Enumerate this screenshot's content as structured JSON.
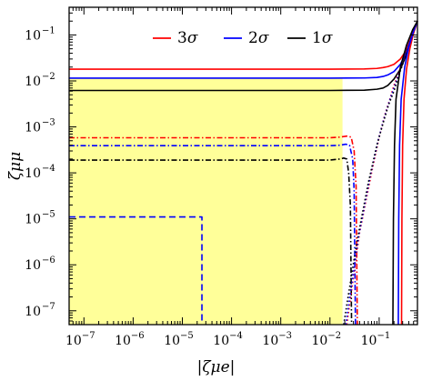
{
  "chart_data": {
    "type": "line",
    "xscale": "log",
    "yscale": "log",
    "xlim": [
      5e-08,
      0.6
    ],
    "ylim": [
      5e-08,
      0.4
    ],
    "xlabel": "|ζμe|",
    "ylabel": "ζμμ",
    "grid": false,
    "legend_position": "top-center",
    "x_ticks": [
      {
        "base": "10",
        "exp": "−7",
        "value": 1e-07
      },
      {
        "base": "10",
        "exp": "−6",
        "value": 1e-06
      },
      {
        "base": "10",
        "exp": "−5",
        "value": 1e-05
      },
      {
        "base": "10",
        "exp": "−4",
        "value": 0.0001
      },
      {
        "base": "10",
        "exp": "−3",
        "value": 0.001
      },
      {
        "base": "10",
        "exp": "−2",
        "value": 0.01
      },
      {
        "base": "10",
        "exp": "−1",
        "value": 0.1
      }
    ],
    "y_ticks": [
      {
        "base": "10",
        "exp": "−7",
        "value": 1e-07
      },
      {
        "base": "10",
        "exp": "−6",
        "value": 1e-06
      },
      {
        "base": "10",
        "exp": "−5",
        "value": 1e-05
      },
      {
        "base": "10",
        "exp": "−4",
        "value": 0.0001
      },
      {
        "base": "10",
        "exp": "−3",
        "value": 0.001
      },
      {
        "base": "10",
        "exp": "−2",
        "value": 0.01
      },
      {
        "base": "10",
        "exp": "−1",
        "value": 0.1
      }
    ],
    "legend": [
      {
        "label": "3σ",
        "num": "3",
        "sym": "σ",
        "color": "#ff0000"
      },
      {
        "label": "2σ",
        "num": "2",
        "sym": "σ",
        "color": "#0000ff"
      },
      {
        "label": "1σ",
        "num": "1",
        "sym": "σ",
        "color": "#000000"
      }
    ],
    "shaded_region": {
      "x": [
        5e-08,
        0.018
      ],
      "y": [
        5e-08,
        0.0115
      ],
      "color": "#ffff99"
    },
    "series": [
      {
        "color": "#ff0000",
        "style": "solid",
        "x": [
          5e-08,
          0.01,
          0.05,
          0.09,
          0.12,
          0.15,
          0.2,
          0.27,
          0.35,
          0.45,
          0.6
        ],
        "y": [
          0.018,
          0.018,
          0.0182,
          0.0187,
          0.0195,
          0.0205,
          0.023,
          0.03,
          0.045,
          0.09,
          0.2
        ]
      },
      {
        "color": "#0000ff",
        "style": "solid",
        "x": [
          5e-08,
          0.01,
          0.05,
          0.09,
          0.12,
          0.15,
          0.2,
          0.27,
          0.35,
          0.45,
          0.6
        ],
        "y": [
          0.0115,
          0.0115,
          0.0116,
          0.0119,
          0.0125,
          0.0135,
          0.016,
          0.023,
          0.04,
          0.085,
          0.2
        ]
      },
      {
        "color": "#000000",
        "style": "solid",
        "x": [
          5e-08,
          0.01,
          0.05,
          0.09,
          0.12,
          0.15,
          0.2,
          0.27,
          0.35,
          0.45,
          0.6
        ],
        "y": [
          0.0062,
          0.0062,
          0.0063,
          0.0066,
          0.007,
          0.008,
          0.011,
          0.018,
          0.035,
          0.08,
          0.2
        ]
      },
      {
        "color": "#ff0000",
        "style": "dashdot",
        "x": [
          5e-08,
          0.01,
          0.016,
          0.022,
          0.027,
          0.031,
          0.034,
          0.036
        ],
        "y": [
          0.00058,
          0.00058,
          0.0006,
          0.00063,
          0.0006,
          0.0003,
          5e-05,
          5e-08
        ]
      },
      {
        "color": "#0000ff",
        "style": "dashdot",
        "x": [
          5e-08,
          0.01,
          0.016,
          0.021,
          0.025,
          0.029,
          0.031,
          0.033
        ],
        "y": [
          0.00039,
          0.00039,
          0.0004,
          0.00042,
          0.0004,
          0.0002,
          4e-05,
          5e-08
        ]
      },
      {
        "color": "#000000",
        "style": "dashdot",
        "x": [
          5e-08,
          0.01,
          0.016,
          0.019,
          0.022,
          0.024,
          0.026,
          0.0275
        ],
        "y": [
          0.00019,
          0.00019,
          0.0002,
          0.00021,
          0.0002,
          0.0001,
          2e-05,
          5e-08
        ]
      },
      {
        "color": "#ff0000",
        "style": "dotted",
        "x": [
          0.022,
          0.04,
          0.07,
          0.1,
          0.13,
          0.165,
          0.2,
          0.26,
          0.35,
          0.45,
          0.6
        ],
        "y": [
          5e-08,
          5e-06,
          0.0001,
          0.0006,
          0.0018,
          0.004,
          0.008,
          0.017,
          0.04,
          0.09,
          0.2
        ]
      },
      {
        "color": "#0000ff",
        "style": "dotted",
        "x": [
          0.021,
          0.038,
          0.065,
          0.095,
          0.125,
          0.16,
          0.2,
          0.26,
          0.35,
          0.45,
          0.6
        ],
        "y": [
          5e-08,
          4e-06,
          8e-05,
          0.0005,
          0.0015,
          0.0035,
          0.007,
          0.016,
          0.038,
          0.088,
          0.2
        ]
      },
      {
        "color": "#000000",
        "style": "dotted",
        "x": [
          0.019,
          0.035,
          0.06,
          0.09,
          0.12,
          0.155,
          0.2,
          0.26,
          0.35,
          0.45,
          0.6
        ],
        "y": [
          5e-08,
          3e-06,
          6e-05,
          0.0004,
          0.0012,
          0.003,
          0.006,
          0.015,
          0.036,
          0.086,
          0.2
        ]
      },
      {
        "color": "#ff0000",
        "style": "solid",
        "x": [
          0.285,
          0.29,
          0.3,
          0.32,
          0.36,
          0.42,
          0.5,
          0.6
        ],
        "y": [
          5e-08,
          1e-05,
          0.0004,
          0.004,
          0.018,
          0.05,
          0.11,
          0.2
        ]
      },
      {
        "color": "#0000ff",
        "style": "solid",
        "x": [
          0.245,
          0.25,
          0.26,
          0.28,
          0.33,
          0.4,
          0.5,
          0.6
        ],
        "y": [
          5e-08,
          1e-05,
          0.0004,
          0.004,
          0.02,
          0.055,
          0.12,
          0.2
        ]
      },
      {
        "color": "#000000",
        "style": "solid",
        "x": [
          0.19,
          0.195,
          0.205,
          0.22,
          0.27,
          0.36,
          0.48,
          0.6
        ],
        "y": [
          5e-08,
          1e-05,
          0.0004,
          0.004,
          0.02,
          0.06,
          0.13,
          0.2
        ]
      },
      {
        "color": "#0000ff",
        "style": "dashed",
        "x": [
          5e-08,
          2.5e-05,
          2.5e-05
        ],
        "y": [
          1.1e-05,
          1.1e-05,
          5e-08
        ]
      }
    ]
  }
}
